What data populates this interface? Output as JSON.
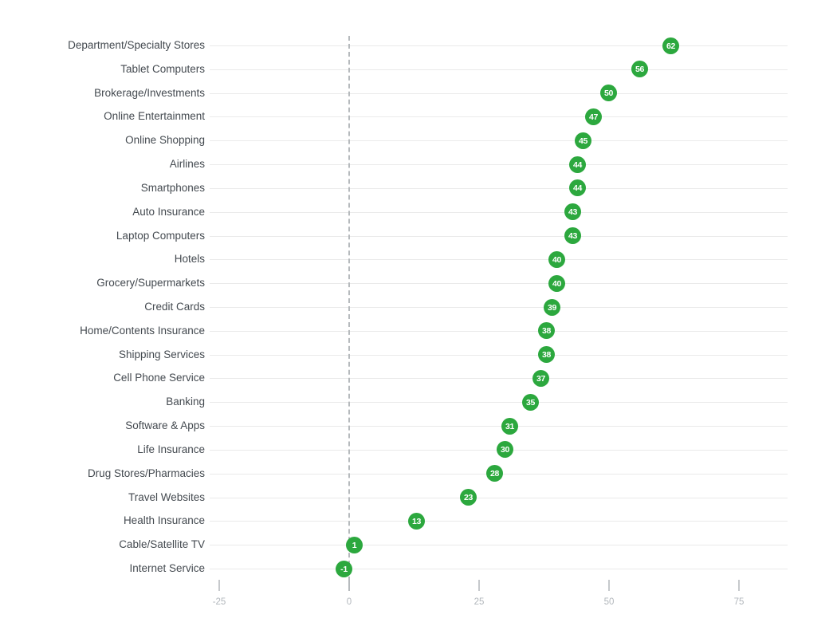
{
  "chart_data": {
    "type": "scatter",
    "subtype": "horizontal-dot-plot",
    "title": "",
    "categories": [
      "Department/Specialty Stores",
      "Tablet Computers",
      "Brokerage/Investments",
      "Online Entertainment",
      "Online Shopping",
      "Airlines",
      "Smartphones",
      "Auto Insurance",
      "Laptop Computers",
      "Hotels",
      "Grocery/Supermarkets",
      "Credit Cards",
      "Home/Contents Insurance",
      "Shipping Services",
      "Cell Phone Service",
      "Banking",
      "Software & Apps",
      "Life Insurance",
      "Drug Stores/Pharmacies",
      "Travel Websites",
      "Health Insurance",
      "Cable/Satellite TV",
      "Internet Service"
    ],
    "values": [
      62,
      56,
      50,
      47,
      45,
      44,
      44,
      43,
      43,
      40,
      40,
      39,
      38,
      38,
      37,
      35,
      31,
      30,
      28,
      23,
      13,
      1,
      -1
    ],
    "xticks": [
      -25,
      0,
      25,
      50,
      75
    ],
    "xlim": [
      -26.8,
      84.4
    ],
    "grid": "horizontal",
    "zero_baseline": true,
    "legend": "none",
    "colors": {
      "dot_fill": "#2ca83e",
      "dot_value_text": "#ffffff",
      "category_label": "#444a50",
      "axis_tick_label": "#b2b7bc",
      "gridline": "#eaeaea",
      "zero_baseline": "#b6babd",
      "background": "#ffffff"
    }
  }
}
